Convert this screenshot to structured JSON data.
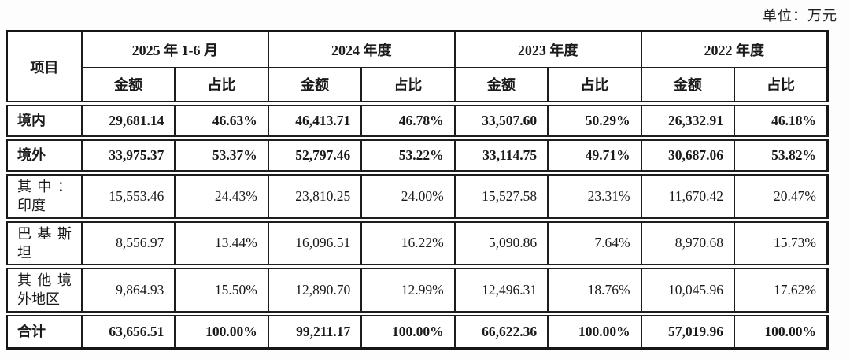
{
  "unit_label": "单位：万元",
  "colors": {
    "border": "#1d1d1d",
    "text": "#1a1a1a",
    "background": "#ffffff"
  },
  "table": {
    "row_header": "项目",
    "col_groups": [
      {
        "label": "2025 年 1-6 月"
      },
      {
        "label": "2024 年度"
      },
      {
        "label": "2023 年度"
      },
      {
        "label": "2022 年度"
      }
    ],
    "sub_headers": {
      "amount": "金额",
      "ratio": "占比"
    },
    "rows": [
      {
        "label": "境内",
        "bold": true,
        "values": [
          "29,681.14",
          "46.63%",
          "46,413.71",
          "46.78%",
          "33,507.60",
          "50.29%",
          "26,332.91",
          "46.18%"
        ]
      },
      {
        "label": "境外",
        "bold": true,
        "values": [
          "33,975.37",
          "53.37%",
          "52,797.46",
          "53.22%",
          "33,114.75",
          "49.71%",
          "30,687.06",
          "53.82%"
        ]
      },
      {
        "label": "其中：印度",
        "bold": false,
        "values": [
          "15,553.46",
          "24.43%",
          "23,810.25",
          "24.00%",
          "15,527.58",
          "23.31%",
          "11,670.42",
          "20.47%"
        ]
      },
      {
        "label": "巴基斯坦",
        "bold": false,
        "values": [
          "8,556.97",
          "13.44%",
          "16,096.51",
          "16.22%",
          "5,090.86",
          "7.64%",
          "8,970.68",
          "15.73%"
        ]
      },
      {
        "label": "其他境外地区",
        "bold": false,
        "values": [
          "9,864.93",
          "15.50%",
          "12,890.70",
          "12.99%",
          "12,496.31",
          "18.76%",
          "10,045.96",
          "17.62%"
        ]
      },
      {
        "label": "合计",
        "bold": true,
        "values": [
          "63,656.51",
          "100.00%",
          "99,211.17",
          "100.00%",
          "66,622.36",
          "100.00%",
          "57,019.96",
          "100.00%"
        ]
      }
    ]
  }
}
